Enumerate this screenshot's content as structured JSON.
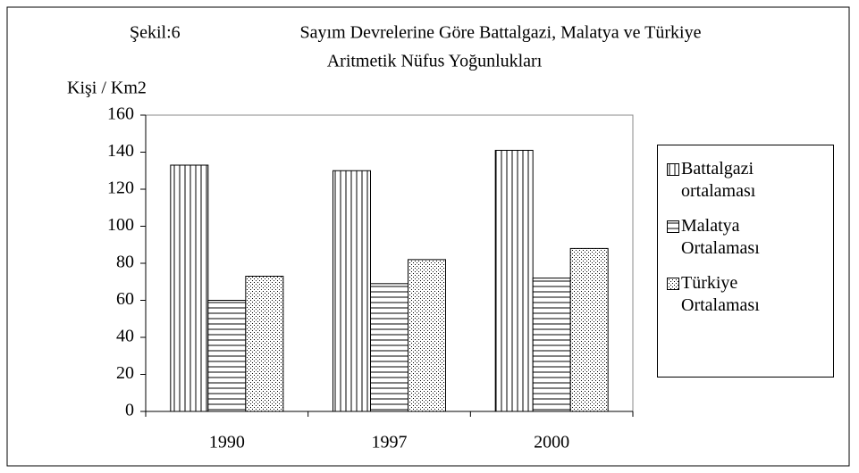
{
  "chart_data": {
    "type": "bar",
    "figure_label": "Şekil:6",
    "title": "Sayım Devrelerine Göre Battalgazi, Malatya ve Türkiye",
    "subtitle": "Aritmetik Nüfus Yoğunlukları",
    "y_label": "Kişi / Km2",
    "categories": [
      "1990",
      "1997",
      "2000"
    ],
    "series": [
      {
        "name": "Battalgazi ortalaması",
        "color": "#000000",
        "pattern": "vertical",
        "values": [
          133,
          130,
          141
        ]
      },
      {
        "name": "Malatya Ortalaması",
        "color": "#000000",
        "pattern": "horizontal",
        "values": [
          60,
          69,
          72
        ]
      },
      {
        "name": "Türkiye Ortalaması",
        "color": "#000000",
        "pattern": "dots",
        "values": [
          73,
          82,
          88
        ]
      }
    ],
    "ylim": [
      0,
      160
    ],
    "yticks": [
      0,
      20,
      40,
      60,
      80,
      100,
      120,
      140,
      160
    ],
    "legend": "right"
  }
}
